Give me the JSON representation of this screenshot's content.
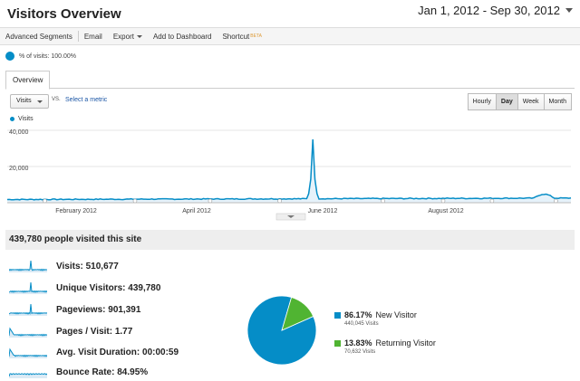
{
  "header": {
    "title": "Visitors Overview",
    "date_range": "Jan 1, 2012 - Sep 30, 2012"
  },
  "toolbar": {
    "advanced_segments": "Advanced Segments",
    "email": "Email",
    "export": "Export",
    "add_to_dashboard": "Add to Dashboard",
    "shortcut": "Shortcut",
    "shortcut_badge": "BETA"
  },
  "segment": {
    "label": "% of visits: 100.00%"
  },
  "tabs": {
    "overview": "Overview"
  },
  "controls": {
    "metric": "Visits",
    "vs": "VS.",
    "select_metric": "Select a metric",
    "granularity": [
      "Hourly",
      "Day",
      "Week",
      "Month"
    ],
    "active_granularity": "Day"
  },
  "chart_data": {
    "type": "area",
    "series": [
      {
        "name": "Visits"
      }
    ],
    "y_ticks": [
      "40,000",
      "20,000"
    ],
    "ylim": [
      0,
      40000
    ],
    "x_labels": [
      "February 2012",
      "April 2012",
      "June 2012",
      "August 2012"
    ],
    "xlim": [
      "2012-01-01",
      "2012-09-30"
    ],
    "peak": {
      "date": "2012-05-28",
      "value": 35000
    },
    "baseline_range": [
      1200,
      2800
    ],
    "color": "#058dc7"
  },
  "summary": {
    "headline": "439,780 people visited this site",
    "metrics": [
      {
        "label": "Visits:",
        "value": "510,677"
      },
      {
        "label": "Unique Visitors:",
        "value": "439,780"
      },
      {
        "label": "Pageviews:",
        "value": "901,391"
      },
      {
        "label": "Pages / Visit:",
        "value": "1.77"
      },
      {
        "label": "Avg. Visit Duration:",
        "value": "00:00:59"
      },
      {
        "label": "Bounce Rate:",
        "value": "84.95%"
      }
    ]
  },
  "visitor_pie": {
    "slices": [
      {
        "pct": "86.17%",
        "label": "New Visitor",
        "visits": "440,045 Visits",
        "value": 86.17,
        "color": "#058dc7"
      },
      {
        "pct": "13.83%",
        "label": "Returning Visitor",
        "visits": "70,632 Visits",
        "value": 13.83,
        "color": "#50b432"
      }
    ]
  }
}
